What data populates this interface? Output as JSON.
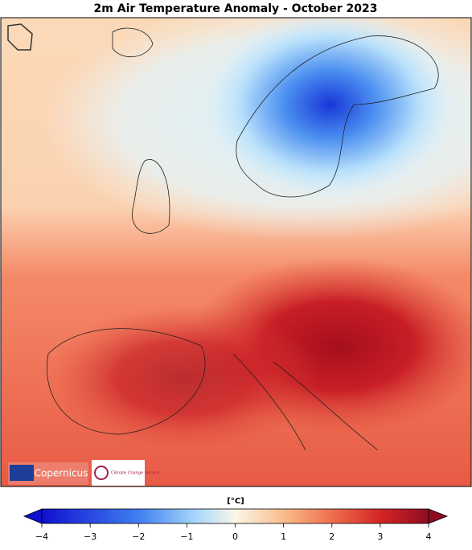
{
  "title": "2m Air Temperature Anomaly - October 2023",
  "logos": {
    "copernicus": "Copernicus",
    "climate": "Climate Change Service"
  },
  "colorbar": {
    "label": "[°C]",
    "lim": [
      -4,
      4
    ],
    "ticks": [
      {
        "value": -4,
        "label": "−4"
      },
      {
        "value": -3,
        "label": "−3"
      },
      {
        "value": -2,
        "label": "−2"
      },
      {
        "value": -1,
        "label": "−1"
      },
      0,
      1,
      2,
      3,
      4
    ]
  }
}
